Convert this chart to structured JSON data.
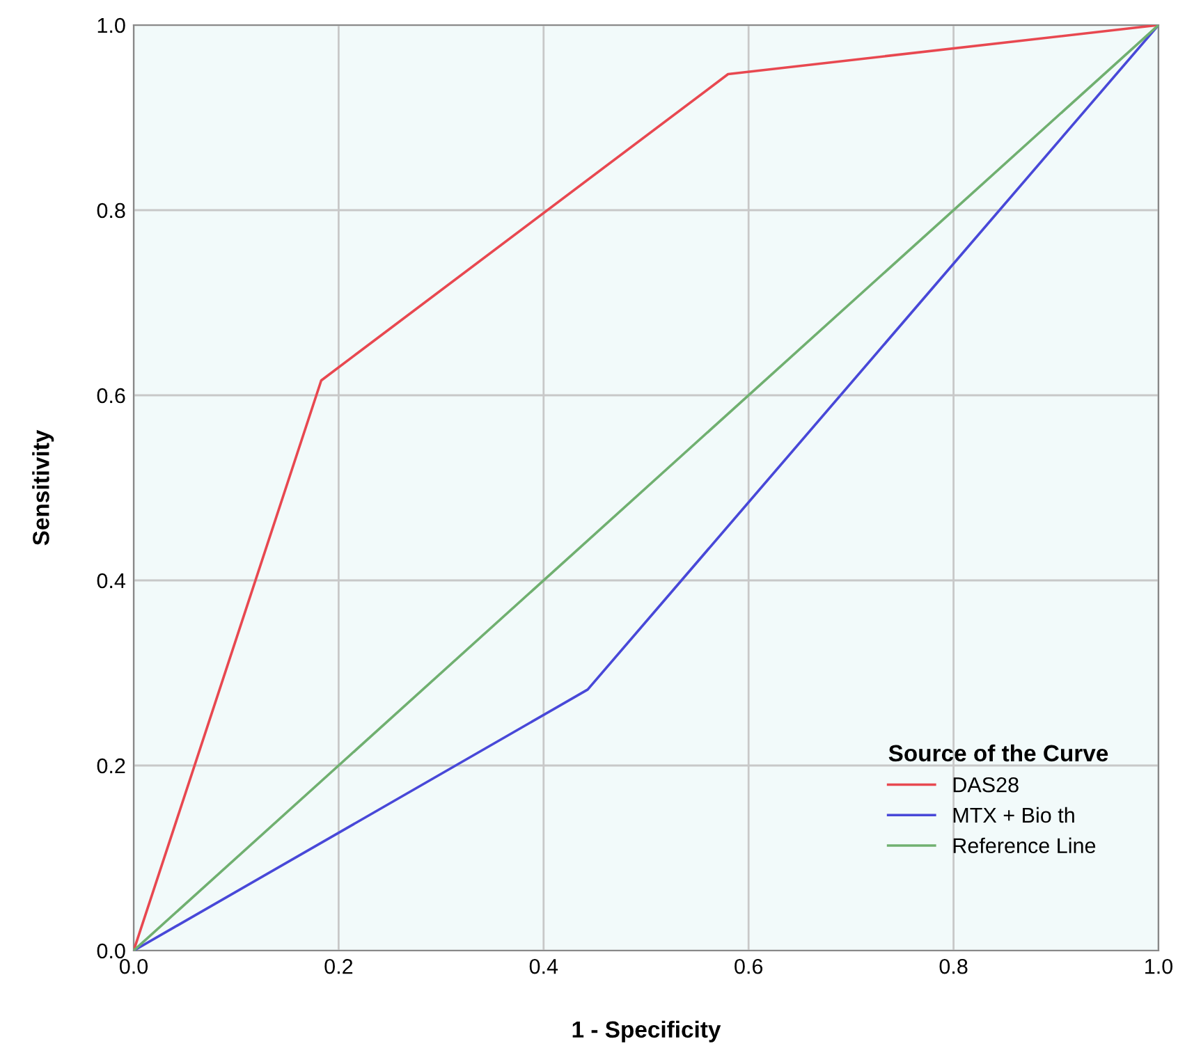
{
  "chart_data": {
    "type": "line",
    "xlabel": "1 - Specificity",
    "ylabel": "Sensitivity",
    "legend_title": "Source of the Curve",
    "series": [
      {
        "name": "DAS28",
        "color": "#e84850",
        "x": [
          0,
          0.183,
          0.58,
          1
        ],
        "values": [
          0,
          0.616,
          0.947,
          1
        ]
      },
      {
        "name": "MTX + Bio th",
        "color": "#4848d8",
        "x": [
          0,
          0.443,
          1
        ],
        "values": [
          0,
          0.282,
          1
        ]
      },
      {
        "name": "Reference Line",
        "color": "#70b070",
        "x": [
          0,
          1
        ],
        "values": [
          0,
          1
        ]
      }
    ],
    "xlim": [
      0,
      1
    ],
    "ylim": [
      0,
      1
    ],
    "xticks": [
      {
        "value": 0,
        "label": "0.0"
      },
      {
        "value": 0.2,
        "label": "0.2"
      },
      {
        "value": 0.4,
        "label": "0.4"
      },
      {
        "value": 0.6,
        "label": "0.6"
      },
      {
        "value": 0.8,
        "label": "0.8"
      },
      {
        "value": 1,
        "label": "1.0"
      }
    ],
    "yticks": [
      {
        "value": 0,
        "label": "0.0"
      },
      {
        "value": 0.2,
        "label": "0.2"
      },
      {
        "value": 0.4,
        "label": "0.4"
      },
      {
        "value": 0.6,
        "label": "0.6"
      },
      {
        "value": 0.8,
        "label": "0.8"
      },
      {
        "value": 1,
        "label": "1.0"
      }
    ],
    "grid": true,
    "legend": "lower right",
    "marker": "none",
    "line_style": "solid"
  }
}
